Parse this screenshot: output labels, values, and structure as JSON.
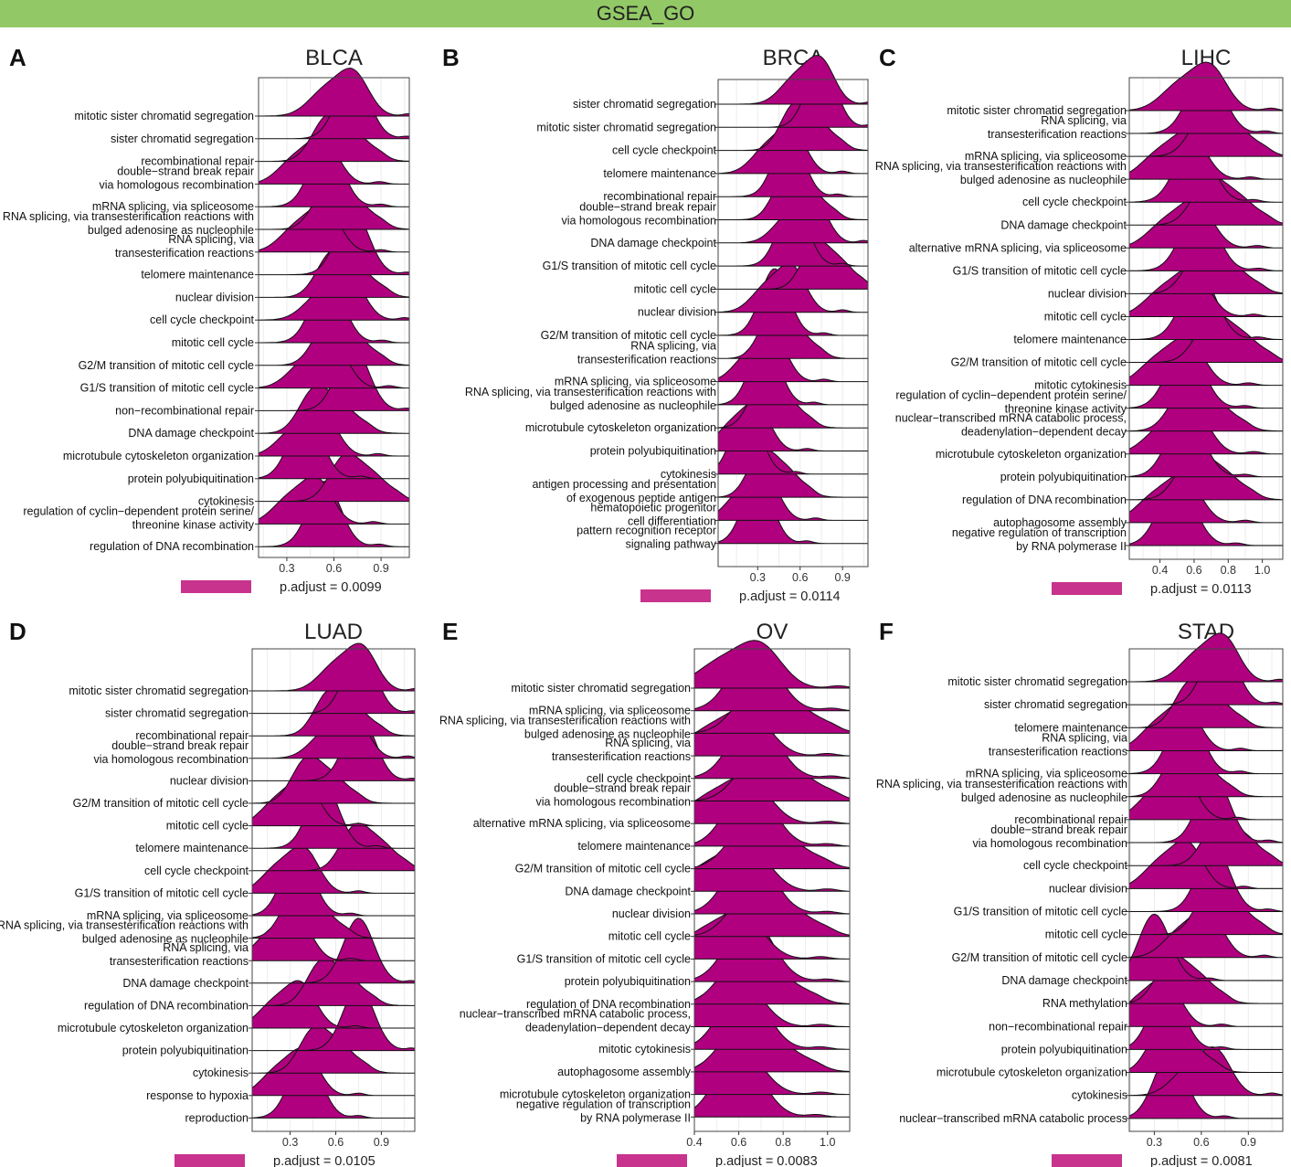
{
  "banner": {
    "title": "GSEA_GO",
    "color": "#92c966"
  },
  "style": {
    "fill": "#b0007f",
    "legend_fill": "#c8338d",
    "grid": "#ececec",
    "frame": "#444444"
  },
  "chart_data": [
    {
      "type": "ridgeline",
      "panel": "A",
      "title": "BLCA",
      "xlim": [
        0.12,
        1.08
      ],
      "xticks": [
        0.3,
        0.6,
        0.9
      ],
      "legend": "p.adjust = 0.0099",
      "categories": [
        "mitotic sister chromatid segregation",
        "sister chromatid segregation",
        "recombinational repair",
        "double−strand break repair via homologous recombination",
        "mRNA splicing, via spliceosome",
        "RNA splicing, via transesterification reactions with bulged adenosine as nucleophile",
        "RNA splicing, via transesterification reactions",
        "telomere maintenance",
        "nuclear division",
        "cell cycle checkpoint",
        "mitotic cell cycle",
        "G2/M transition of mitotic cell cycle",
        "G1/S transition of mitotic cell cycle",
        "non−recombinational repair",
        "DNA damage checkpoint",
        "microtubule cytoskeleton organization",
        "protein polyubiquitination",
        "cytokinesis",
        "regulation of cyclin−dependent protein serine/ threonine kinase activity",
        "regulation of DNA recombination"
      ],
      "peaks": [
        0.73,
        0.72,
        0.55,
        0.54,
        0.55,
        0.56,
        0.55,
        0.72,
        0.58,
        0.7,
        0.56,
        0.56,
        0.6,
        0.72,
        0.47,
        0.53,
        0.42,
        0.66,
        0.5,
        0.54
      ]
    },
    {
      "type": "ridgeline",
      "panel": "B",
      "title": "BRCA",
      "xlim": [
        0.02,
        1.08
      ],
      "xticks": [
        0.3,
        0.6,
        0.9
      ],
      "legend": "p.adjust = 0.0114",
      "categories": [
        "sister chromatid segregation",
        "mitotic sister chromatid segregation",
        "cell cycle checkpoint",
        "telomere maintenance",
        "recombinational repair",
        "double−strand break repair via homologous recombination",
        "DNA damage checkpoint",
        "G1/S transition of mitotic cell cycle",
        "mitotic cell cycle",
        "nuclear division",
        "G2/M transition of mitotic cell cycle",
        "RNA splicing, via transesterification reactions",
        "mRNA splicing, via spliceosome",
        "RNA splicing, via transesterification reactions with bulged adenosine as nucleophile",
        "microtubule cytoskeleton organization",
        "protein polyubiquitination",
        "cytokinesis",
        "antigen processing and presentation of exogenous peptide antigen",
        "hematopoietic progenitor cell differentiation",
        "pattern recognition receptor signaling pathway"
      ],
      "peaks": [
        0.75,
        0.75,
        0.55,
        0.55,
        0.52,
        0.5,
        0.7,
        0.55,
        0.7,
        0.55,
        0.42,
        0.4,
        0.42,
        0.35,
        0.33,
        0.3,
        0.22,
        0.32,
        0.36,
        0.3
      ]
    },
    {
      "type": "ridgeline",
      "panel": "C",
      "title": "LIHC",
      "xlim": [
        0.22,
        1.12
      ],
      "xticks": [
        0.4,
        0.6,
        0.8,
        1.0
      ],
      "legend": "p.adjust = 0.0113",
      "categories": [
        "mitotic sister chromatid segregation",
        "RNA splicing, via transesterification reactions",
        "mRNA splicing, via spliceosome",
        "RNA splicing, via transesterification reactions with bulged adenosine as nucleophile",
        "cell cycle checkpoint",
        "DNA damage checkpoint",
        "alternative mRNA splicing, via spliceosome",
        "G1/S transition of mitotic cell cycle",
        "nuclear division",
        "mitotic cell cycle",
        "telomere maintenance",
        "G2/M transition of mitotic cell cycle",
        "mitotic cytokinesis",
        "regulation of cyclin−dependent protein serine/ threonine kinase activity",
        "nuclear−transcribed mRNA catabolic process, deadenylation−dependent decay",
        "microtubule cytoskeleton organization",
        "protein polyubiquitination",
        "regulation of DNA recombination",
        "autophagosome assembly",
        "negative regulation of transcription by RNA polymerase II"
      ],
      "peaks": [
        0.7,
        0.67,
        0.67,
        0.58,
        0.6,
        0.68,
        0.62,
        0.63,
        0.64,
        0.6,
        0.63,
        0.7,
        0.57,
        0.55,
        0.55,
        0.6,
        0.55,
        0.59,
        0.55,
        0.5
      ]
    },
    {
      "type": "ridgeline",
      "panel": "D",
      "title": "LUAD",
      "xlim": [
        0.05,
        1.12
      ],
      "xticks": [
        0.3,
        0.6,
        0.9
      ],
      "legend": "p.adjust = 0.0105",
      "categories": [
        "mitotic sister chromatid segregation",
        "sister chromatid segregation",
        "recombinational repair",
        "double−strand break repair via homologous recombination",
        "nuclear division",
        "G2/M transition of mitotic cell cycle",
        "mitotic cell cycle",
        "telomere maintenance",
        "cell cycle checkpoint",
        "G1/S transition of mitotic cell cycle",
        "mRNA splicing, via spliceosome",
        "RNA splicing, via transesterification reactions with bulged adenosine as nucleophile",
        "RNA splicing, via transesterification reactions",
        "DNA damage checkpoint",
        "regulation of DNA recombination",
        "microtubule cytoskeleton organization",
        "protein polyubiquitination",
        "cytokinesis",
        "response to hypoxia",
        "reproduction"
      ],
      "peaks": [
        0.78,
        0.76,
        0.55,
        0.72,
        0.76,
        0.4,
        0.4,
        0.52,
        0.72,
        0.4,
        0.35,
        0.33,
        0.35,
        0.75,
        0.5,
        0.38,
        0.75,
        0.45,
        0.4,
        0.4
      ]
    },
    {
      "type": "ridgeline",
      "panel": "E",
      "title": "OV",
      "xlim": [
        0.4,
        1.1
      ],
      "xticks": [
        0.4,
        0.6,
        0.8,
        1.0
      ],
      "legend": "p.adjust = 0.0083",
      "categories": [
        "mitotic sister chromatid segregation",
        "mRNA splicing, via spliceosome",
        "RNA splicing, via transesterification reactions with bulged adenosine as nucleophile",
        "RNA splicing, via transesterification reactions",
        "cell cycle checkpoint",
        "double−strand break repair via homologous recombination",
        "alternative mRNA splicing, via spliceosome",
        "telomere maintenance",
        "G2/M transition of mitotic cell cycle",
        "DNA damage checkpoint",
        "nuclear division",
        "mitotic cell cycle",
        "G1/S transition of mitotic cell cycle",
        "protein polyubiquitination",
        "regulation of DNA recombination",
        "nuclear−transcribed mRNA catabolic process, deadenylation−dependent decay",
        "mitotic cytokinesis",
        "autophagosome assembly",
        "microtubule cytoskeleton organization",
        "negative regulation of transcription by RNA polymerase II"
      ],
      "peaks": [
        0.7,
        0.67,
        0.67,
        0.65,
        0.67,
        0.68,
        0.65,
        0.65,
        0.64,
        0.65,
        0.65,
        0.65,
        0.62,
        0.65,
        0.6,
        0.62,
        0.62,
        0.6,
        0.62,
        0.6
      ]
    },
    {
      "type": "ridgeline",
      "panel": "F",
      "title": "STAD",
      "xlim": [
        0.14,
        1.12
      ],
      "xticks": [
        0.3,
        0.6,
        0.9
      ],
      "legend": "p.adjust = 0.0081",
      "categories": [
        "mitotic sister chromatid segregation",
        "sister chromatid segregation",
        "telomere maintenance",
        "RNA splicing, via transesterification reactions",
        "mRNA splicing, via spliceosome",
        "RNA splicing, via transesterification reactions with bulged adenosine as nucleophile",
        "recombinational repair",
        "double−strand break repair via homologous recombination",
        "cell cycle checkpoint",
        "nuclear division",
        "G1/S transition of mitotic cell cycle",
        "mitotic cell cycle",
        "G2/M transition of mitotic cell cycle",
        "DNA damage checkpoint",
        "RNA methylation",
        "non−recombinational repair",
        "protein polyubiquitination",
        "microtubule cytoskeleton organization",
        "cytokinesis",
        "nuclear−transcribed mRNA catabolic process"
      ],
      "peaks": [
        0.75,
        0.72,
        0.52,
        0.5,
        0.5,
        0.45,
        0.48,
        0.68,
        0.7,
        0.52,
        0.68,
        0.65,
        0.65,
        0.3,
        0.4,
        0.38,
        0.38,
        0.35,
        0.7,
        0.4
      ]
    }
  ]
}
